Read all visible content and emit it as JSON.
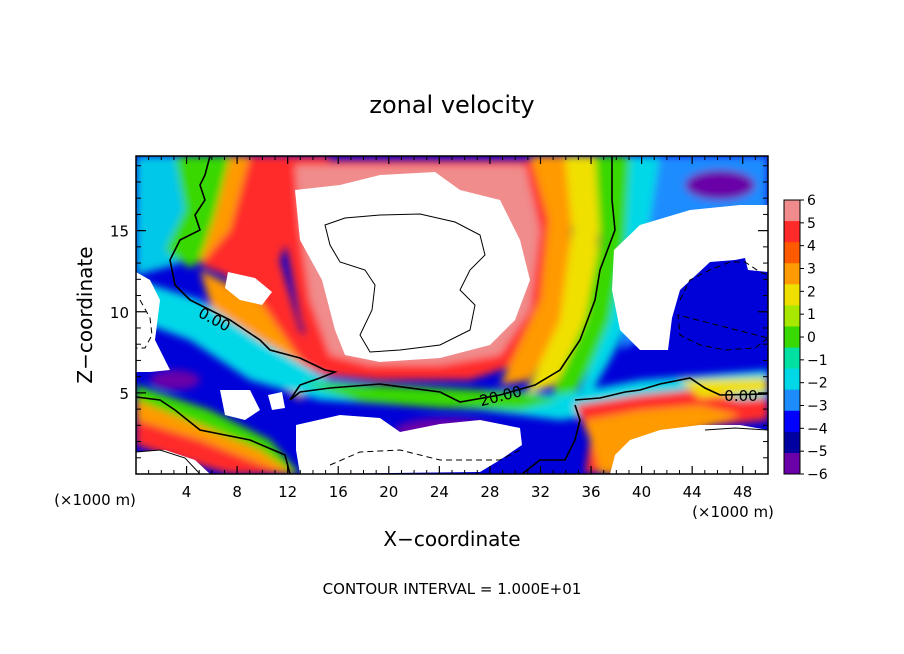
{
  "chart_data": {
    "type": "heatmap",
    "title": "zonal velocity",
    "xlabel": "X−coordinate",
    "ylabel": "Z−coordinate",
    "x_unit_label_left": "(×1000 m)",
    "x_unit_label_right": "(×1000 m)",
    "footer": "CONTOUR INTERVAL = 1.000E+01",
    "xlim": [
      0,
      50
    ],
    "ylim": [
      0,
      19.6
    ],
    "x_ticks": [
      4,
      8,
      12,
      16,
      20,
      24,
      28,
      32,
      36,
      40,
      44,
      48
    ],
    "y_ticks": [
      5,
      10,
      15
    ],
    "colorbar": {
      "levels": [
        6,
        5,
        4,
        3,
        2,
        1,
        0,
        -1,
        -2,
        -3,
        -4,
        -5,
        -6
      ],
      "colors": [
        "#f08c8c",
        "#ff2a2a",
        "#ff5a00",
        "#ff9a00",
        "#f0e000",
        "#a8e800",
        "#38d800",
        "#00e0a0",
        "#00d8e8",
        "#1c8cff",
        "#0000ff",
        "#0000a0",
        "#6a00a8"
      ]
    },
    "contour_labels": [
      {
        "text": "0.00",
        "x": 5.2,
        "y": 10.1
      },
      {
        "text": "20.00",
        "x": 28.5,
        "y": 4.6
      },
      {
        "text": "0.00",
        "x": 46.5,
        "y": 4.8
      }
    ],
    "saturated_regions_note": "white areas exceed colorbar range"
  }
}
